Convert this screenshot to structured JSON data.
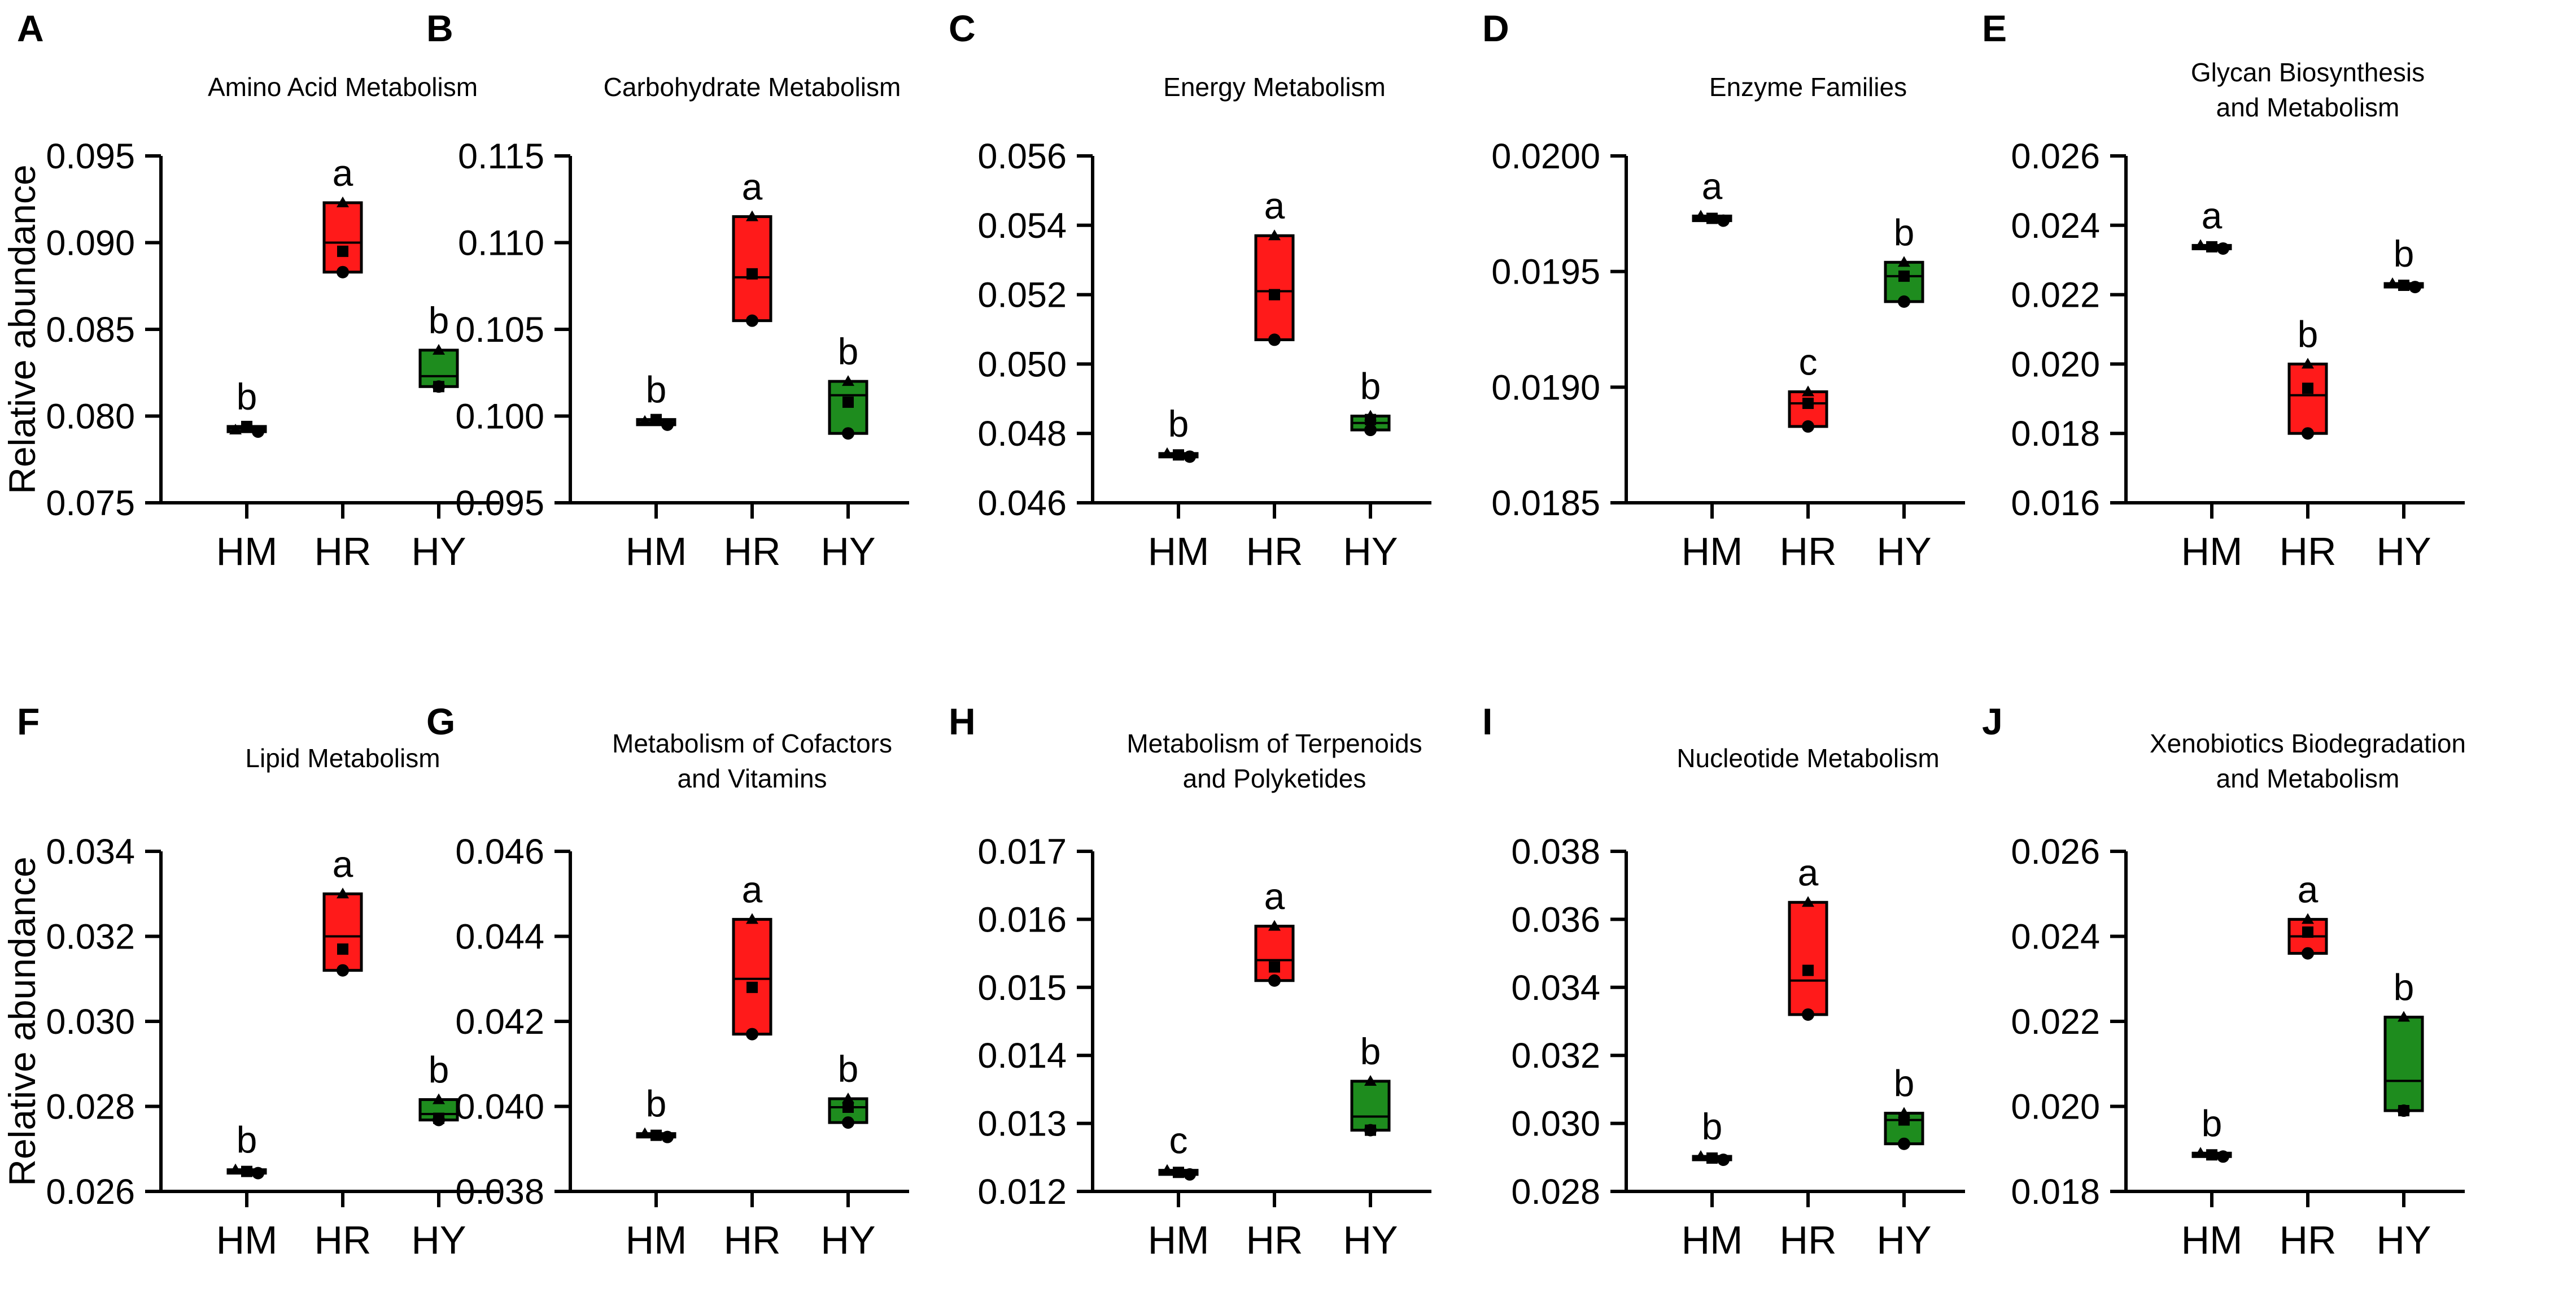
{
  "ylabel": "Relative abundance",
  "groups": [
    "HM",
    "HR",
    "HY"
  ],
  "colors": {
    "HM": "#111111",
    "HR": "#ff1a1a",
    "HY": "#1e8c1e",
    "outline": "#000000"
  },
  "chart_data": [
    {
      "type": "box",
      "letter": "A",
      "title": [
        "Amino Acid Metabolism"
      ],
      "ylim": [
        0.075,
        0.095
      ],
      "ticks": [
        "0.075",
        "0.080",
        "0.085",
        "0.090",
        "0.095"
      ],
      "series": [
        {
          "name": "HM",
          "q1": 0.0791,
          "median": 0.0793,
          "q3": 0.0794,
          "min": 0.0791,
          "max": 0.0794,
          "points": [
            0.0792,
            0.0794,
            0.0791
          ],
          "sig": "b"
        },
        {
          "name": "HR",
          "q1": 0.0883,
          "median": 0.09,
          "q3": 0.0923,
          "min": 0.0883,
          "max": 0.0923,
          "points": [
            0.0923,
            0.0895,
            0.0883
          ],
          "sig": "a"
        },
        {
          "name": "HY",
          "q1": 0.0817,
          "median": 0.0823,
          "q3": 0.0838,
          "min": 0.0817,
          "max": 0.0838,
          "points": [
            0.0838,
            0.0817,
            0.0817
          ],
          "sig": "b"
        }
      ]
    },
    {
      "type": "box",
      "letter": "B",
      "title": [
        "Carbohydrate Metabolism"
      ],
      "ylim": [
        0.095,
        0.115
      ],
      "ticks": [
        "0.095",
        "0.100",
        "0.105",
        "0.110",
        "0.115"
      ],
      "series": [
        {
          "name": "HM",
          "q1": 0.0995,
          "median": 0.0996,
          "q3": 0.0998,
          "min": 0.0995,
          "max": 0.0998,
          "points": [
            0.0997,
            0.0998,
            0.0995
          ],
          "sig": "b"
        },
        {
          "name": "HR",
          "q1": 0.1055,
          "median": 0.108,
          "q3": 0.1115,
          "min": 0.1055,
          "max": 0.1115,
          "points": [
            0.1115,
            0.1082,
            0.1055
          ],
          "sig": "a"
        },
        {
          "name": "HY",
          "q1": 0.099,
          "median": 0.1012,
          "q3": 0.102,
          "min": 0.099,
          "max": 0.102,
          "points": [
            0.102,
            0.1008,
            0.099
          ],
          "sig": "b"
        }
      ]
    },
    {
      "type": "box",
      "letter": "C",
      "title": [
        "Energy Metabolism"
      ],
      "ylim": [
        0.046,
        0.056
      ],
      "ticks": [
        "0.046",
        "0.048",
        "0.050",
        "0.052",
        "0.054",
        "0.056"
      ],
      "series": [
        {
          "name": "HM",
          "q1": 0.04733,
          "median": 0.04738,
          "q3": 0.04742,
          "min": 0.04733,
          "max": 0.04742,
          "points": [
            0.04742,
            0.04738,
            0.04733
          ],
          "sig": "b"
        },
        {
          "name": "HR",
          "q1": 0.0507,
          "median": 0.0521,
          "q3": 0.0537,
          "min": 0.0507,
          "max": 0.0537,
          "points": [
            0.0537,
            0.052,
            0.0507
          ],
          "sig": "a"
        },
        {
          "name": "HY",
          "q1": 0.0481,
          "median": 0.0483,
          "q3": 0.0485,
          "min": 0.0481,
          "max": 0.0485,
          "points": [
            0.0485,
            0.0484,
            0.0481
          ],
          "sig": "b"
        }
      ]
    },
    {
      "type": "box",
      "letter": "D",
      "title": [
        "Enzyme Families"
      ],
      "ylim": [
        0.0185,
        0.02
      ],
      "ticks": [
        "0.0185",
        "0.0190",
        "0.0195",
        "0.0200"
      ],
      "series": [
        {
          "name": "HM",
          "q1": 0.01972,
          "median": 0.01973,
          "q3": 0.01974,
          "min": 0.01972,
          "max": 0.01974,
          "points": [
            0.01974,
            0.01973,
            0.01972
          ],
          "sig": "a"
        },
        {
          "name": "HR",
          "q1": 0.01883,
          "median": 0.01893,
          "q3": 0.01898,
          "min": 0.01883,
          "max": 0.01898,
          "points": [
            0.01898,
            0.01893,
            0.01883
          ],
          "sig": "c"
        },
        {
          "name": "HY",
          "q1": 0.01937,
          "median": 0.01948,
          "q3": 0.01954,
          "min": 0.01937,
          "max": 0.01954,
          "points": [
            0.01954,
            0.01948,
            0.01937
          ],
          "sig": "b"
        }
      ]
    },
    {
      "type": "box",
      "letter": "E",
      "title": [
        "Glycan Biosynthesis",
        "and Metabolism"
      ],
      "ylim": [
        0.016,
        0.026
      ],
      "ticks": [
        "0.016",
        "0.018",
        "0.020",
        "0.022",
        "0.024",
        "0.026"
      ],
      "series": [
        {
          "name": "HM",
          "q1": 0.02333,
          "median": 0.02338,
          "q3": 0.02342,
          "min": 0.02333,
          "max": 0.02342,
          "points": [
            0.02342,
            0.02338,
            0.02333
          ],
          "sig": "a"
        },
        {
          "name": "HR",
          "q1": 0.018,
          "median": 0.0191,
          "q3": 0.02,
          "min": 0.018,
          "max": 0.02,
          "points": [
            0.02,
            0.0193,
            0.018
          ],
          "sig": "b"
        },
        {
          "name": "HY",
          "q1": 0.02222,
          "median": 0.02227,
          "q3": 0.02232,
          "min": 0.02222,
          "max": 0.02232,
          "points": [
            0.02232,
            0.02227,
            0.02222
          ],
          "sig": "b"
        }
      ]
    },
    {
      "type": "box",
      "letter": "F",
      "title": [
        "Lipid Metabolism"
      ],
      "ylim": [
        0.026,
        0.034
      ],
      "ticks": [
        "0.026",
        "0.028",
        "0.030",
        "0.032",
        "0.034"
      ],
      "series": [
        {
          "name": "HM",
          "q1": 0.02643,
          "median": 0.02647,
          "q3": 0.02651,
          "min": 0.02643,
          "max": 0.02651,
          "points": [
            0.02651,
            0.02647,
            0.02643
          ],
          "sig": "b"
        },
        {
          "name": "HR",
          "q1": 0.0312,
          "median": 0.032,
          "q3": 0.033,
          "min": 0.0312,
          "max": 0.033,
          "points": [
            0.033,
            0.0317,
            0.0312
          ],
          "sig": "a"
        },
        {
          "name": "HY",
          "q1": 0.02768,
          "median": 0.02782,
          "q3": 0.02816,
          "min": 0.02768,
          "max": 0.02816,
          "points": [
            0.02816,
            0.02772,
            0.02768
          ],
          "sig": "b"
        }
      ]
    },
    {
      "type": "box",
      "letter": "G",
      "title": [
        "Metabolism of Cofactors",
        "and Vitamins"
      ],
      "ylim": [
        0.038,
        0.046
      ],
      "ticks": [
        "0.038",
        "0.040",
        "0.042",
        "0.044",
        "0.046"
      ],
      "series": [
        {
          "name": "HM",
          "q1": 0.03928,
          "median": 0.03932,
          "q3": 0.03936,
          "min": 0.03928,
          "max": 0.03936,
          "points": [
            0.03936,
            0.03932,
            0.03928
          ],
          "sig": "b"
        },
        {
          "name": "HR",
          "q1": 0.0417,
          "median": 0.043,
          "q3": 0.0444,
          "min": 0.0417,
          "max": 0.0444,
          "points": [
            0.0444,
            0.0428,
            0.0417
          ],
          "sig": "a"
        },
        {
          "name": "HY",
          "q1": 0.03962,
          "median": 0.03998,
          "q3": 0.04018,
          "min": 0.03962,
          "max": 0.04018,
          "points": [
            0.04018,
            0.03998,
            0.03962
          ],
          "sig": "b"
        }
      ]
    },
    {
      "type": "box",
      "letter": "H",
      "title": [
        "Metabolism of Terpenoids",
        "and Polyketides"
      ],
      "ylim": [
        0.012,
        0.017
      ],
      "ticks": [
        "0.012",
        "0.013",
        "0.014",
        "0.015",
        "0.016",
        "0.017"
      ],
      "series": [
        {
          "name": "HM",
          "q1": 0.01225,
          "median": 0.01228,
          "q3": 0.01231,
          "min": 0.01225,
          "max": 0.01231,
          "points": [
            0.01231,
            0.01228,
            0.01225
          ],
          "sig": "c"
        },
        {
          "name": "HR",
          "q1": 0.0151,
          "median": 0.0154,
          "q3": 0.0159,
          "min": 0.0151,
          "max": 0.0159,
          "points": [
            0.0159,
            0.0153,
            0.0151
          ],
          "sig": "a"
        },
        {
          "name": "HY",
          "q1": 0.0129,
          "median": 0.0131,
          "q3": 0.01362,
          "min": 0.0129,
          "max": 0.01362,
          "points": [
            0.01362,
            0.0129,
            0.0129
          ],
          "sig": "b"
        }
      ]
    },
    {
      "type": "box",
      "letter": "I",
      "title": [
        "Nucleotide Metabolism"
      ],
      "ylim": [
        0.028,
        0.038
      ],
      "ticks": [
        "0.028",
        "0.030",
        "0.032",
        "0.034",
        "0.036",
        "0.038"
      ],
      "series": [
        {
          "name": "HM",
          "q1": 0.02893,
          "median": 0.02898,
          "q3": 0.02903,
          "min": 0.02893,
          "max": 0.02903,
          "points": [
            0.02903,
            0.02898,
            0.02893
          ],
          "sig": "b"
        },
        {
          "name": "HR",
          "q1": 0.0332,
          "median": 0.0342,
          "q3": 0.0365,
          "min": 0.0332,
          "max": 0.0365,
          "points": [
            0.0365,
            0.0345,
            0.0332
          ],
          "sig": "a"
        },
        {
          "name": "HY",
          "q1": 0.0294,
          "median": 0.0301,
          "q3": 0.0303,
          "min": 0.0294,
          "max": 0.0303,
          "points": [
            0.0303,
            0.0301,
            0.0294
          ],
          "sig": "b"
        }
      ]
    },
    {
      "type": "box",
      "letter": "J",
      "title": [
        "Xenobiotics Biodegradation",
        "and Metabolism"
      ],
      "ylim": [
        0.018,
        0.026
      ],
      "ticks": [
        "0.018",
        "0.020",
        "0.022",
        "0.024",
        "0.026"
      ],
      "series": [
        {
          "name": "HM",
          "q1": 0.01882,
          "median": 0.01886,
          "q3": 0.0189,
          "min": 0.01882,
          "max": 0.0189,
          "points": [
            0.0189,
            0.01886,
            0.01882
          ],
          "sig": "b"
        },
        {
          "name": "HR",
          "q1": 0.0236,
          "median": 0.024,
          "q3": 0.0244,
          "min": 0.0236,
          "max": 0.0244,
          "points": [
            0.0244,
            0.0241,
            0.0236
          ],
          "sig": "a"
        },
        {
          "name": "HY",
          "q1": 0.0199,
          "median": 0.0206,
          "q3": 0.0221,
          "min": 0.0199,
          "max": 0.0221,
          "points": [
            0.0221,
            0.0199,
            0.0199
          ],
          "sig": "b"
        }
      ]
    }
  ]
}
